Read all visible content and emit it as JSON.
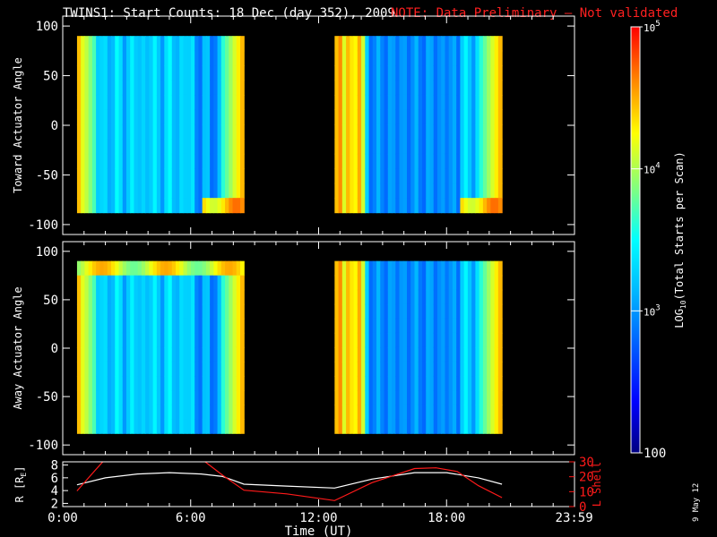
{
  "title": {
    "main": "TWINS1: Start Counts: 18 Dec (day 352), 2009",
    "note": "NOTE: Data Preliminary – Not validated",
    "note_color": "#ff2020"
  },
  "stamp": "9 May 12",
  "colors": {
    "r_line": "#ffffff",
    "lshell_line": "#ff1a1a",
    "frame": "#ffffff",
    "background": "#000000"
  },
  "chart_data": [
    {
      "type": "heatmap",
      "panel": "toward",
      "ylabel": "Toward Actuator Angle",
      "xlim": [
        0,
        24
      ],
      "ylim": [
        -110,
        110
      ],
      "yticks": [
        100,
        50,
        0,
        -50,
        -100
      ],
      "angle_range": [
        -88,
        90
      ],
      "coverage_hours": [
        [
          0.67,
          8.5
        ],
        [
          12.75,
          20.6
        ]
      ],
      "color_scale": "log",
      "value_range": [
        100,
        100000
      ]
    },
    {
      "type": "heatmap",
      "panel": "away",
      "ylabel": "Away Actuator Angle",
      "xlim": [
        0,
        24
      ],
      "ylim": [
        -110,
        110
      ],
      "yticks": [
        100,
        50,
        0,
        -50,
        -100
      ],
      "angle_range": [
        -88,
        90
      ],
      "coverage_hours": [
        [
          0.67,
          8.5
        ],
        [
          12.75,
          20.6
        ]
      ],
      "color_scale": "log",
      "value_range": [
        100,
        100000
      ]
    },
    {
      "type": "line",
      "panel": "orbit",
      "xlabel": "Time (UT)",
      "xlim": [
        0,
        24
      ],
      "xticks": [
        {
          "v": 0,
          "label": "0:00"
        },
        {
          "v": 6,
          "label": "6:00"
        },
        {
          "v": 12,
          "label": "12:00"
        },
        {
          "v": 18,
          "label": "18:00"
        },
        {
          "v": 23.983,
          "label": "23:59"
        }
      ],
      "ylabel_left": "R [R",
      "ylabel_left_sub": "E",
      "ylabel_left_close": "]",
      "ylim_left": [
        1.5,
        8.5
      ],
      "yticks_left": [
        2,
        4,
        6,
        8
      ],
      "ylabel_right": "L Shell",
      "ylim_right": [
        0,
        30
      ],
      "yticks_right": [
        0,
        10,
        20,
        30
      ],
      "series": [
        {
          "axis": "left",
          "x": [
            0.67,
            2.0,
            3.5,
            5.0,
            6.5,
            7.5,
            8.5,
            10.5,
            12.75,
            14.5,
            16.5,
            18.0,
            19.5,
            20.6
          ],
          "y": [
            4.9,
            6.0,
            6.6,
            6.8,
            6.6,
            6.2,
            5.0,
            4.7,
            4.4,
            5.8,
            6.8,
            6.8,
            6.0,
            5.0
          ]
        },
        {
          "axis": "right",
          "x": [
            0.67,
            1.5,
            2.0,
            6.5,
            7.5,
            8.5,
            10.5,
            12.75,
            14.5,
            16.5,
            17.5,
            18.5,
            19.5,
            20.6
          ],
          "y": [
            10.5,
            24.0,
            32.0,
            32.0,
            21.0,
            11.0,
            8.5,
            4.0,
            16.0,
            25.5,
            26.0,
            23.5,
            14.0,
            6.0
          ]
        }
      ]
    },
    {
      "type": "colorbar",
      "label": "LOG",
      "label_sub": "10",
      "label_rest": "(Total Starts per Scan)",
      "range": [
        100,
        100000
      ],
      "scale": "log",
      "ticks": [
        {
          "v": 100,
          "mantissa": "100",
          "exp": ""
        },
        {
          "v": 1000,
          "mantissa": "10",
          "exp": "3"
        },
        {
          "v": 10000,
          "mantissa": "10",
          "exp": "4"
        },
        {
          "v": 100000,
          "mantissa": "10",
          "exp": "5"
        }
      ]
    }
  ]
}
